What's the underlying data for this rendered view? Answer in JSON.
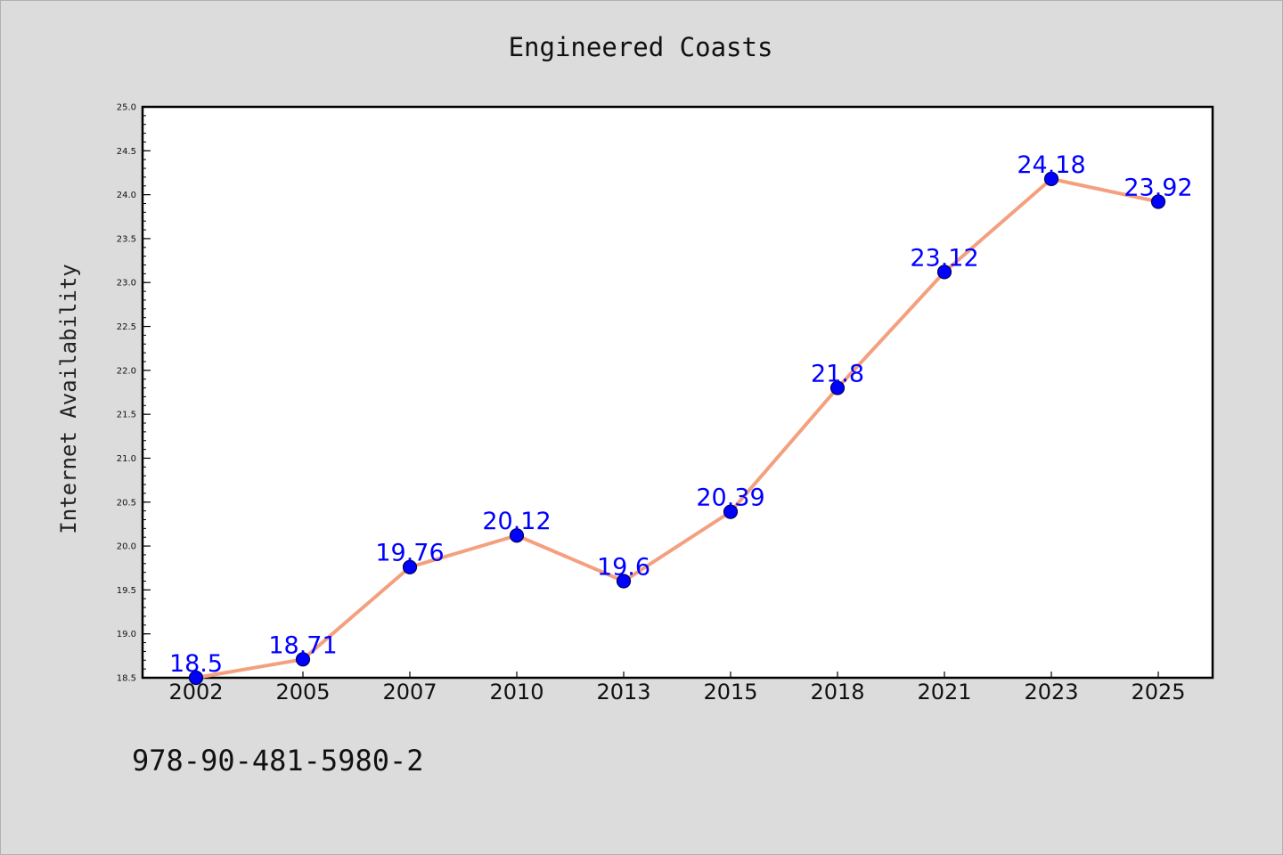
{
  "chart_data": {
    "type": "line",
    "title": "Engineered Coasts",
    "xlabel": "",
    "ylabel": "Internet Availability",
    "categories": [
      "2002",
      "2005",
      "2007",
      "2010",
      "2013",
      "2015",
      "2018",
      "2021",
      "2023",
      "2025"
    ],
    "series": [
      {
        "values": [
          18.5,
          18.71,
          19.76,
          20.12,
          19.6,
          20.39,
          21.8,
          23.12,
          24.18,
          23.92
        ],
        "labels": [
          "18.5",
          "18.71",
          "19.76",
          "20.12",
          "19.6",
          "20.39",
          "21.8",
          "23.12",
          "24.18",
          "23.92"
        ],
        "line_color": "#f4a07f",
        "marker_color": "#0000ff"
      }
    ],
    "ylim": [
      18.5,
      25.0
    ],
    "yticks": [
      "18.5",
      "19.0",
      "19.5",
      "20.0",
      "20.5",
      "21.0",
      "21.5",
      "22.0",
      "22.5",
      "23.0",
      "23.5",
      "24.0",
      "24.5",
      "25.0"
    ],
    "grid": false,
    "legend": "none",
    "data_label_color": "#0000ff"
  },
  "footer": {
    "isbn": "978-90-481-5980-2"
  }
}
